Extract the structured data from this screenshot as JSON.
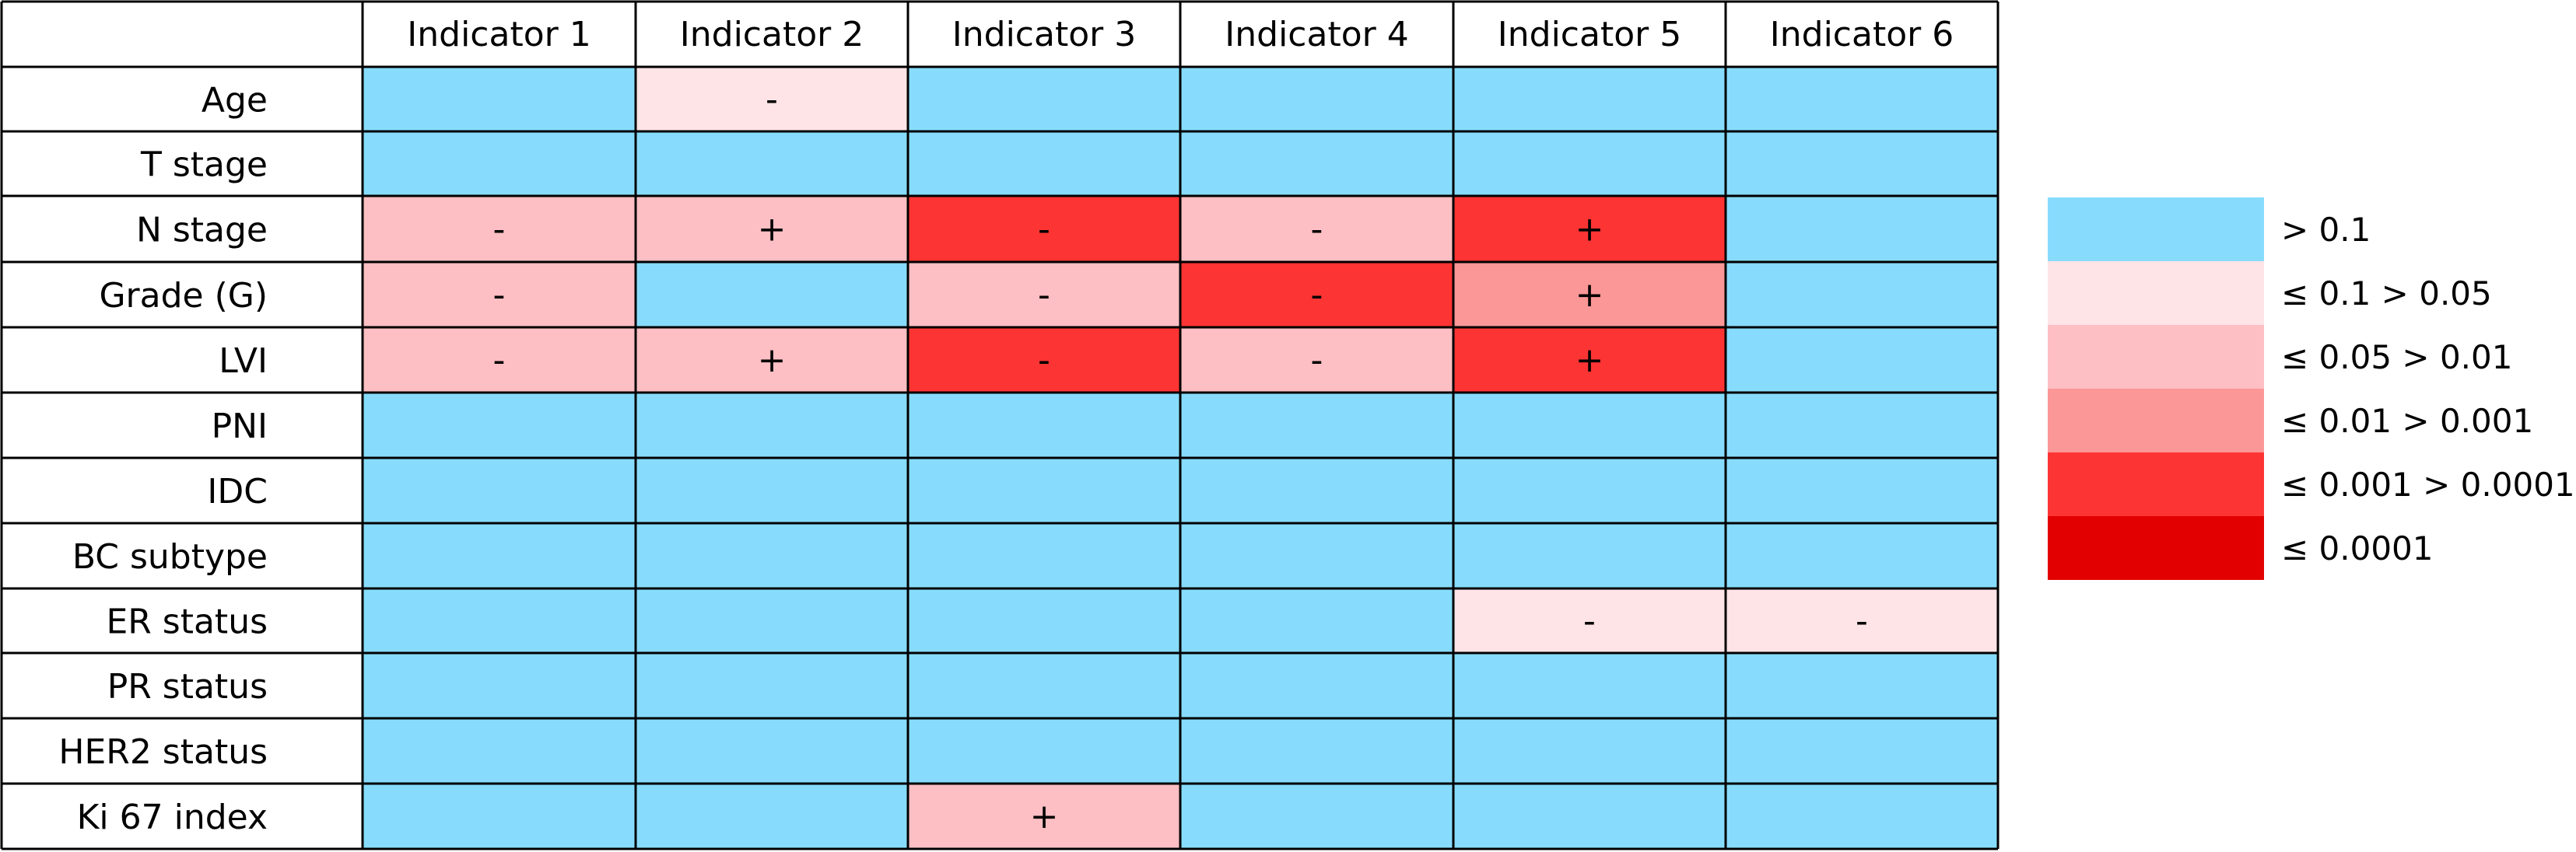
{
  "chart_data": {
    "type": "heatmap",
    "columns": [
      "Indicator 1",
      "Indicator 2",
      "Indicator 3",
      "Indicator 4",
      "Indicator 5",
      "Indicator 6"
    ],
    "rows": [
      "Age",
      "T stage",
      "N stage",
      "Grade (G)",
      "LVI",
      "PNI",
      "IDC",
      "BC subtype",
      "ER status",
      "PR status",
      "HER2 status",
      "Ki 67 index"
    ],
    "levels": [
      {
        "label": "> 0.1",
        "color": "#87dcfd"
      },
      {
        "label": "≤ 0.1 > 0.05",
        "color": "#fee4e6"
      },
      {
        "label": "≤ 0.05 > 0.01",
        "color": "#fdbfc3"
      },
      {
        "label": "≤ 0.01 > 0.001",
        "color": "#fc9797"
      },
      {
        "label": "≤ 0.001 > 0.0001",
        "color": "#fd3434"
      },
      {
        "label": "≤ 0.0001",
        "color": "#e20000"
      }
    ],
    "cells": [
      [
        0,
        1,
        0,
        0,
        0,
        0
      ],
      [
        0,
        0,
        0,
        0,
        0,
        0
      ],
      [
        2,
        2,
        4,
        2,
        4,
        0
      ],
      [
        2,
        0,
        2,
        4,
        3,
        0
      ],
      [
        2,
        2,
        4,
        2,
        4,
        0
      ],
      [
        0,
        0,
        0,
        0,
        0,
        0
      ],
      [
        0,
        0,
        0,
        0,
        0,
        0
      ],
      [
        0,
        0,
        0,
        0,
        0,
        0
      ],
      [
        0,
        0,
        0,
        0,
        1,
        1
      ],
      [
        0,
        0,
        0,
        0,
        0,
        0
      ],
      [
        0,
        0,
        0,
        0,
        0,
        0
      ],
      [
        0,
        0,
        2,
        0,
        0,
        0
      ]
    ],
    "signs": [
      [
        "",
        "-",
        "",
        "",
        "",
        ""
      ],
      [
        "",
        "",
        "",
        "",
        "",
        ""
      ],
      [
        "-",
        "+",
        "-",
        "-",
        "+",
        ""
      ],
      [
        "-",
        "",
        "-",
        "-",
        "+",
        ""
      ],
      [
        "-",
        "+",
        "-",
        "-",
        "+",
        ""
      ],
      [
        "",
        "",
        "",
        "",
        "",
        ""
      ],
      [
        "",
        "",
        "",
        "",
        "",
        ""
      ],
      [
        "",
        "",
        "",
        "",
        "",
        ""
      ],
      [
        "",
        "",
        "",
        "",
        "-",
        "-"
      ],
      [
        "",
        "",
        "",
        "",
        "",
        ""
      ],
      [
        "",
        "",
        "",
        "",
        "",
        ""
      ],
      [
        "",
        "",
        "+",
        "",
        "",
        ""
      ]
    ],
    "legend_position": "right"
  }
}
